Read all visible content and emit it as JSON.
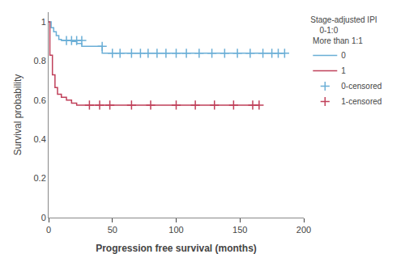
{
  "chart_data": {
    "type": "step",
    "xlabel": "Progression free survival (months)",
    "ylabel": "Survival probability",
    "xlim": [
      0,
      200
    ],
    "ylim": [
      0,
      1.05
    ],
    "xticks": [
      0,
      50,
      100,
      150,
      200
    ],
    "yticks": [
      0,
      0.2,
      0.4,
      0.6,
      0.8,
      1
    ],
    "grid": false,
    "legend": "upper right",
    "legend_title": "Stage-adjusted IPI\n    0-1:0\n More than 1:1",
    "series": [
      {
        "name": "0",
        "color": "#6aaed6",
        "x": [
          0,
          2,
          4,
          6,
          8,
          10,
          12,
          15,
          18,
          22,
          26,
          30,
          35,
          42,
          50,
          185
        ],
        "values": [
          1.0,
          0.97,
          0.95,
          0.93,
          0.91,
          0.905,
          0.905,
          0.905,
          0.9,
          0.89,
          0.875,
          0.875,
          0.875,
          0.84,
          0.84,
          0.84
        ]
      },
      {
        "name": "1",
        "color": "#c0405a",
        "x": [
          0,
          1,
          3,
          5,
          7,
          10,
          14,
          18,
          22,
          26,
          30,
          32,
          165
        ],
        "values": [
          1.0,
          0.83,
          0.73,
          0.665,
          0.63,
          0.615,
          0.6,
          0.585,
          0.575,
          0.575,
          0.575,
          0.575,
          0.575
        ]
      },
      {
        "name": "0-censored",
        "type": "scatter",
        "marker": "+",
        "color": "#6aaed6",
        "x": [
          14,
          18,
          22,
          26,
          42,
          50,
          56,
          65,
          72,
          78,
          85,
          92,
          100,
          108,
          118,
          128,
          138,
          148,
          158,
          168,
          175,
          180,
          185
        ],
        "values": [
          0.905,
          0.905,
          0.905,
          0.905,
          0.875,
          0.84,
          0.84,
          0.84,
          0.84,
          0.84,
          0.84,
          0.84,
          0.84,
          0.84,
          0.84,
          0.84,
          0.84,
          0.84,
          0.84,
          0.84,
          0.84,
          0.84,
          0.84
        ]
      },
      {
        "name": "1-censored",
        "type": "scatter",
        "marker": "+",
        "color": "#c0405a",
        "x": [
          32,
          40,
          48,
          65,
          80,
          100,
          115,
          130,
          145,
          160,
          165
        ],
        "values": [
          0.575,
          0.575,
          0.575,
          0.575,
          0.575,
          0.575,
          0.575,
          0.575,
          0.575,
          0.575,
          0.575
        ]
      }
    ]
  }
}
